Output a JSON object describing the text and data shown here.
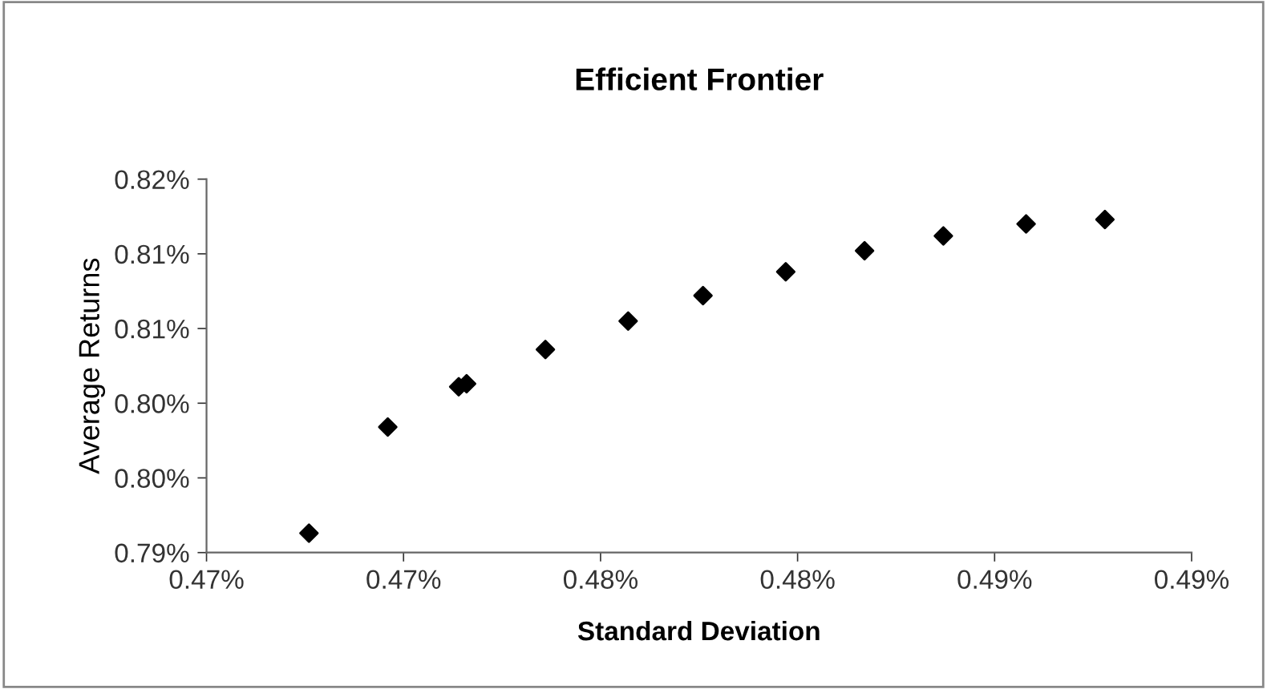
{
  "chart_data": {
    "type": "scatter",
    "title": "Efficient Frontier",
    "xlabel": "Standard Deviation",
    "ylabel": "Average Returns",
    "x": [
      0.4676,
      0.4696,
      0.4714,
      0.4716,
      0.4736,
      0.4757,
      0.4776,
      0.4797,
      0.4817,
      0.4837,
      0.4858,
      0.4878
    ],
    "series": [
      {
        "color": "#000000",
        "values": [
          0.7913,
          0.7984,
          0.8011,
          0.8013,
          0.8036,
          0.8055,
          0.8072,
          0.8088,
          0.8102,
          0.8112,
          0.812,
          0.8123
        ]
      }
    ],
    "marker": "diamond",
    "grid": false,
    "xlim": [
      0.465,
      0.49
    ],
    "xticks": [
      {
        "value": 0.465,
        "label": "0.47%"
      },
      {
        "value": 0.47,
        "label": "0.47%"
      },
      {
        "value": 0.475,
        "label": "0.48%"
      },
      {
        "value": 0.48,
        "label": "0.48%"
      },
      {
        "value": 0.485,
        "label": "0.49%"
      },
      {
        "value": 0.49,
        "label": "0.49%"
      }
    ],
    "ylim": [
      0.79,
      0.815
    ],
    "yticks": [
      {
        "value": 0.79,
        "label": "0.79%"
      },
      {
        "value": 0.795,
        "label": "0.80%"
      },
      {
        "value": 0.8,
        "label": "0.80%"
      },
      {
        "value": 0.805,
        "label": "0.81%"
      },
      {
        "value": 0.81,
        "label": "0.81%"
      },
      {
        "value": 0.815,
        "label": "0.82%"
      }
    ]
  }
}
